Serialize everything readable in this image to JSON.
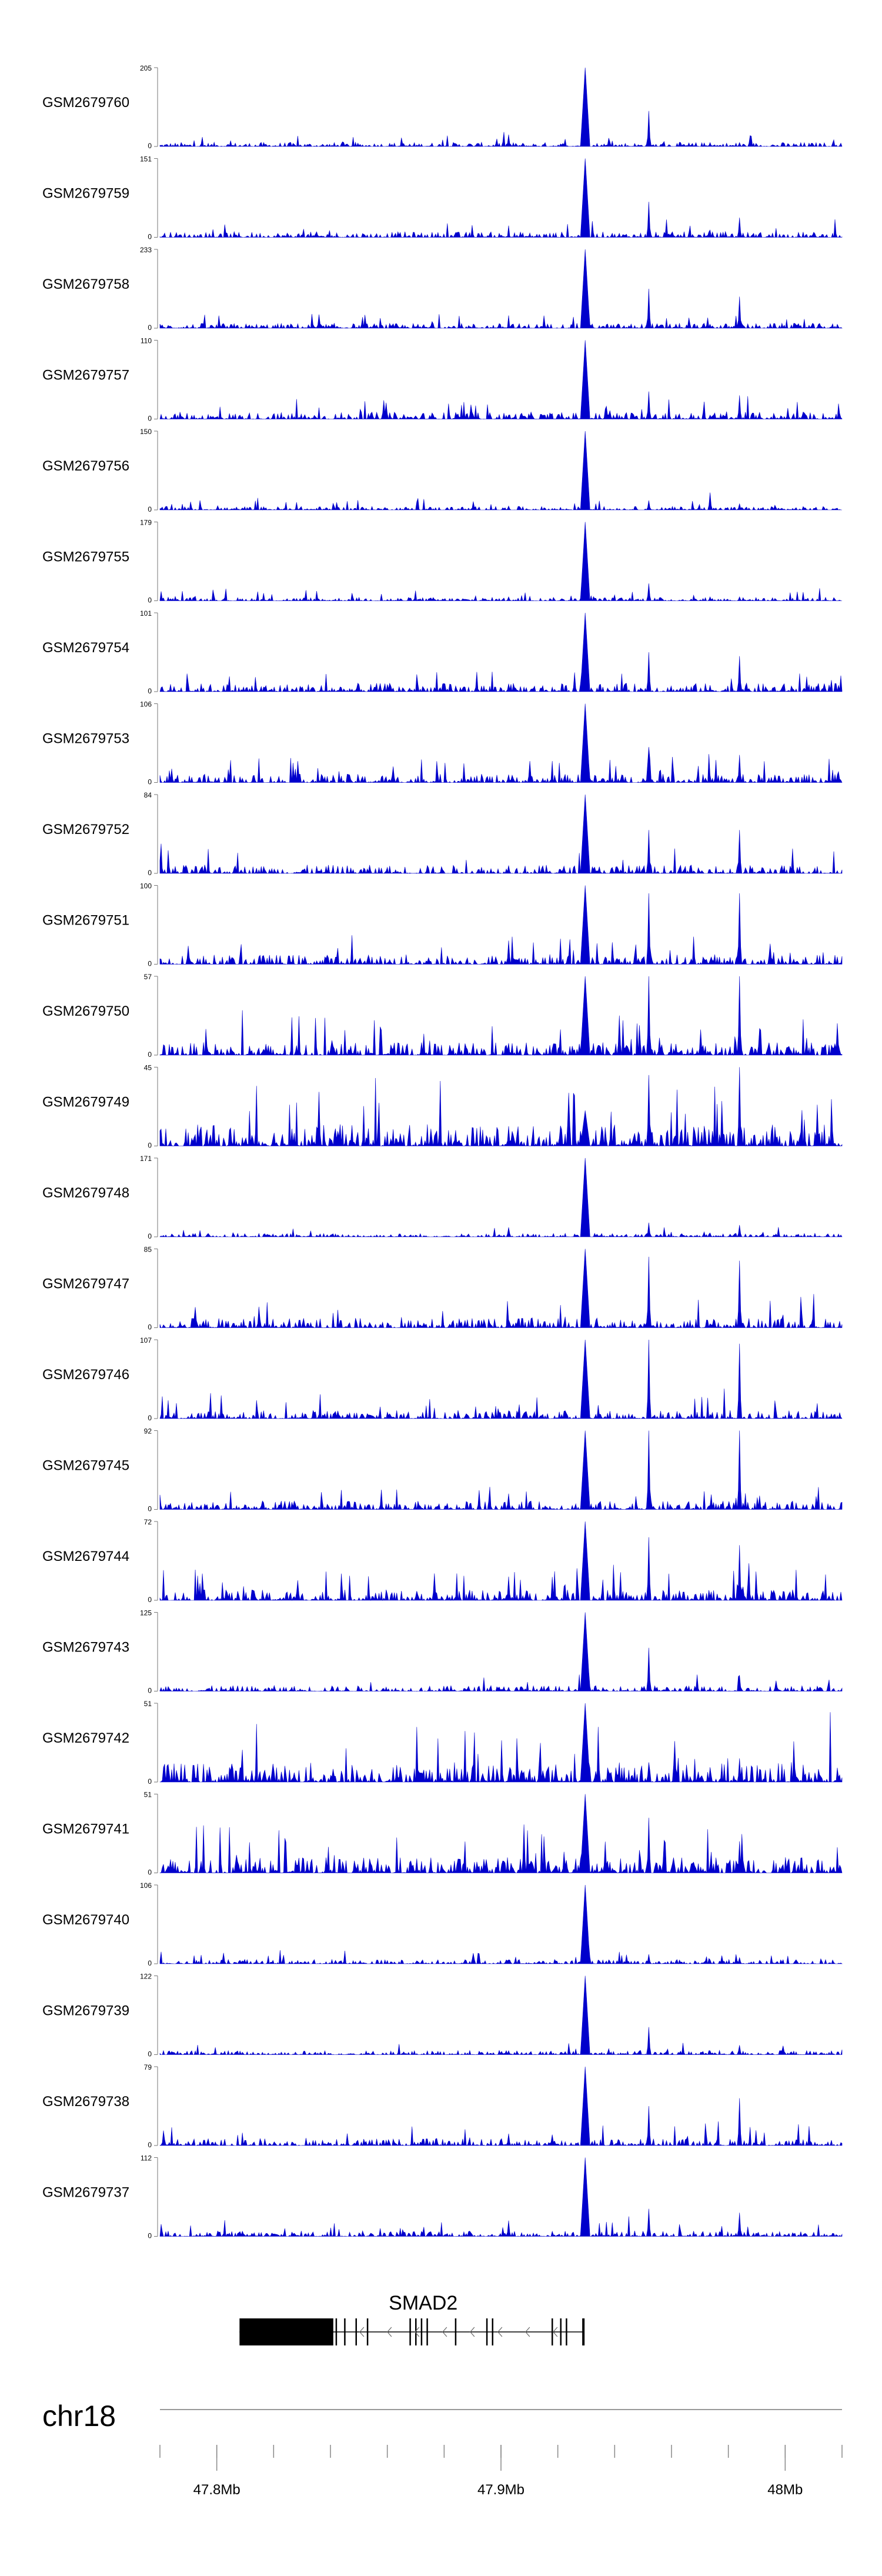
{
  "chart_data": {
    "type": "area",
    "chromosome": "chr18",
    "region_mb": [
      47.78,
      48.02
    ],
    "peak_positions_mb": [
      47.9295,
      47.952,
      47.984,
      47.9025,
      47.9735
    ],
    "tracks": [
      {
        "name": "GSM2679760",
        "max": 205,
        "min": 0,
        "color": "#0000CC",
        "peaks": [
          1.0,
          0.45,
          0.05,
          0.15,
          0.05
        ],
        "noise": 0.06
      },
      {
        "name": "GSM2679759",
        "max": 151,
        "min": 0,
        "color": "#0000CC",
        "peaks": [
          1.0,
          0.45,
          0.25,
          0.05,
          0.05
        ],
        "noise": 0.08
      },
      {
        "name": "GSM2679758",
        "max": 233,
        "min": 0,
        "color": "#0000CC",
        "peaks": [
          1.0,
          0.5,
          0.4,
          0.05,
          0.05
        ],
        "noise": 0.07
      },
      {
        "name": "GSM2679757",
        "max": 110,
        "min": 0,
        "color": "#0000CC",
        "peaks": [
          1.0,
          0.35,
          0.3,
          0.05,
          0.05
        ],
        "noise": 0.1
      },
      {
        "name": "GSM2679756",
        "max": 150,
        "min": 0,
        "color": "#0000CC",
        "peaks": [
          1.0,
          0.12,
          0.08,
          0.05,
          0.22
        ],
        "noise": 0.05
      },
      {
        "name": "GSM2679755",
        "max": 179,
        "min": 0,
        "color": "#0000CC",
        "peaks": [
          1.0,
          0.22,
          0.05,
          0.05,
          0.05
        ],
        "noise": 0.05
      },
      {
        "name": "GSM2679754",
        "max": 101,
        "min": 0,
        "color": "#0000CC",
        "peaks": [
          1.0,
          0.5,
          0.45,
          0.1,
          0.05
        ],
        "noise": 0.12
      },
      {
        "name": "GSM2679753",
        "max": 106,
        "min": 0,
        "color": "#0000CC",
        "peaks": [
          1.0,
          0.45,
          0.35,
          0.1,
          0.05
        ],
        "noise": 0.12
      },
      {
        "name": "GSM2679752",
        "max": 84,
        "min": 0,
        "color": "#0000CC",
        "peaks": [
          1.0,
          0.55,
          0.55,
          0.1,
          0.05
        ],
        "noise": 0.12
      },
      {
        "name": "GSM2679751",
        "max": 100,
        "min": 0,
        "color": "#0000CC",
        "peaks": [
          1.0,
          0.9,
          0.9,
          0.3,
          0.05
        ],
        "noise": 0.14
      },
      {
        "name": "GSM2679750",
        "max": 57,
        "min": 0,
        "color": "#0000CC",
        "peaks": [
          1.0,
          1.0,
          1.0,
          0.15,
          0.05
        ],
        "noise": 0.18
      },
      {
        "name": "GSM2679749",
        "max": 45,
        "min": 0,
        "color": "#0000CC",
        "peaks": [
          0.45,
          0.9,
          1.0,
          0.25,
          0.05
        ],
        "noise": 0.3
      },
      {
        "name": "GSM2679748",
        "max": 171,
        "min": 0,
        "color": "#0000CC",
        "peaks": [
          1.0,
          0.18,
          0.15,
          0.12,
          0.05
        ],
        "noise": 0.05
      },
      {
        "name": "GSM2679747",
        "max": 85,
        "min": 0,
        "color": "#0000CC",
        "peaks": [
          1.0,
          0.9,
          0.85,
          0.1,
          0.05
        ],
        "noise": 0.14
      },
      {
        "name": "GSM2679746",
        "max": 107,
        "min": 0,
        "color": "#0000CC",
        "peaks": [
          1.0,
          1.0,
          0.95,
          0.1,
          0.05
        ],
        "noise": 0.12
      },
      {
        "name": "GSM2679745",
        "max": 92,
        "min": 0,
        "color": "#0000CC",
        "peaks": [
          1.0,
          1.0,
          1.0,
          0.2,
          0.05
        ],
        "noise": 0.12
      },
      {
        "name": "GSM2679744",
        "max": 72,
        "min": 0,
        "color": "#0000CC",
        "peaks": [
          1.0,
          0.8,
          0.7,
          0.3,
          0.05
        ],
        "noise": 0.15
      },
      {
        "name": "GSM2679743",
        "max": 125,
        "min": 0,
        "color": "#0000CC",
        "peaks": [
          1.0,
          0.55,
          0.2,
          0.05,
          0.05
        ],
        "noise": 0.08
      },
      {
        "name": "GSM2679742",
        "max": 51,
        "min": 0,
        "color": "#0000CC",
        "peaks": [
          1.0,
          0.25,
          0.3,
          0.05,
          0.05
        ],
        "noise": 0.28
      },
      {
        "name": "GSM2679741",
        "max": 51,
        "min": 0,
        "color": "#0000CC",
        "peaks": [
          1.0,
          0.7,
          0.4,
          0.05,
          0.05
        ],
        "noise": 0.22
      },
      {
        "name": "GSM2679740",
        "max": 106,
        "min": 0,
        "color": "#0000CC",
        "peaks": [
          1.0,
          0.12,
          0.08,
          0.05,
          0.05
        ],
        "noise": 0.06
      },
      {
        "name": "GSM2679739",
        "max": 122,
        "min": 0,
        "color": "#0000CC",
        "peaks": [
          1.0,
          0.35,
          0.12,
          0.05,
          0.05
        ],
        "noise": 0.06
      },
      {
        "name": "GSM2679738",
        "max": 79,
        "min": 0,
        "color": "#0000CC",
        "peaks": [
          1.0,
          0.5,
          0.6,
          0.15,
          0.05
        ],
        "noise": 0.1
      },
      {
        "name": "GSM2679737",
        "max": 112,
        "min": 0,
        "color": "#0000CC",
        "peaks": [
          1.0,
          0.35,
          0.3,
          0.2,
          0.05
        ],
        "noise": 0.08
      }
    ],
    "gene": {
      "name": "SMAD2",
      "strand": "-",
      "start_mb": 47.808,
      "end_mb": 47.929,
      "thick_end_mb": 47.841,
      "exons_mb": [
        47.842,
        47.845,
        47.849,
        47.853,
        47.868,
        47.87,
        47.872,
        47.874,
        47.884,
        47.895,
        47.897,
        47.918,
        47.921,
        47.923,
        47.929
      ]
    },
    "xaxis": {
      "major_ticks_mb": [
        47.8,
        47.9,
        48
      ],
      "major_tick_labels": [
        "47.8Mb",
        "47.9Mb",
        "48Mb"
      ],
      "minor_ticks_mb": [
        47.78,
        47.8,
        47.82,
        47.84,
        47.86,
        47.88,
        47.9,
        47.92,
        47.94,
        47.96,
        47.98,
        48,
        48.02
      ]
    },
    "grid": false
  }
}
